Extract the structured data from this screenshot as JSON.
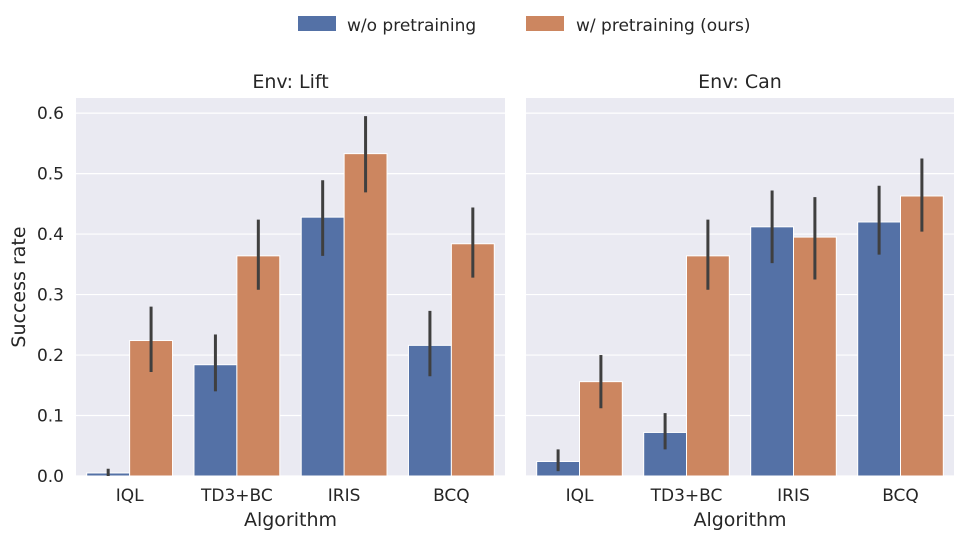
{
  "legend": {
    "series_0": "w/o pretraining",
    "series_1": "w/ pretraining (ours)"
  },
  "colors": {
    "series_0": "#5471a6",
    "series_1": "#cc8660",
    "panel_bg": "#eaeaf2",
    "error_bar": "#3f3f3f"
  },
  "chart_data": [
    {
      "type": "bar",
      "title": "Env: Lift",
      "xlabel": "Algorithm",
      "ylabel": "Success rate",
      "ylim": [
        0,
        0.625
      ],
      "yticks": [
        "0.0",
        "0.1",
        "0.2",
        "0.3",
        "0.4",
        "0.5",
        "0.6"
      ],
      "categories": [
        "IQL",
        "TD3+BC",
        "IRIS",
        "BCQ"
      ],
      "series": [
        {
          "name": "w/o pretraining",
          "values": [
            0.005,
            0.184,
            0.428,
            0.216
          ],
          "ci_low": [
            0.0,
            0.14,
            0.364,
            0.165
          ],
          "ci_high": [
            0.012,
            0.234,
            0.489,
            0.273
          ]
        },
        {
          "name": "w/ pretraining (ours)",
          "values": [
            0.224,
            0.364,
            0.533,
            0.384
          ],
          "ci_low": [
            0.172,
            0.308,
            0.469,
            0.328
          ],
          "ci_high": [
            0.28,
            0.424,
            0.595,
            0.444
          ]
        }
      ]
    },
    {
      "type": "bar",
      "title": "Env: Can",
      "xlabel": "Algorithm",
      "ylabel": "",
      "ylim": [
        0,
        0.625
      ],
      "yticks": [],
      "categories": [
        "IQL",
        "TD3+BC",
        "IRIS",
        "BCQ"
      ],
      "series": [
        {
          "name": "w/o pretraining",
          "values": [
            0.024,
            0.072,
            0.412,
            0.42
          ],
          "ci_low": [
            0.008,
            0.044,
            0.352,
            0.366
          ],
          "ci_high": [
            0.044,
            0.104,
            0.472,
            0.48
          ]
        },
        {
          "name": "w/ pretraining (ours)",
          "values": [
            0.156,
            0.364,
            0.395,
            0.463
          ],
          "ci_low": [
            0.112,
            0.308,
            0.325,
            0.404
          ],
          "ci_high": [
            0.2,
            0.424,
            0.461,
            0.525
          ]
        }
      ]
    }
  ]
}
